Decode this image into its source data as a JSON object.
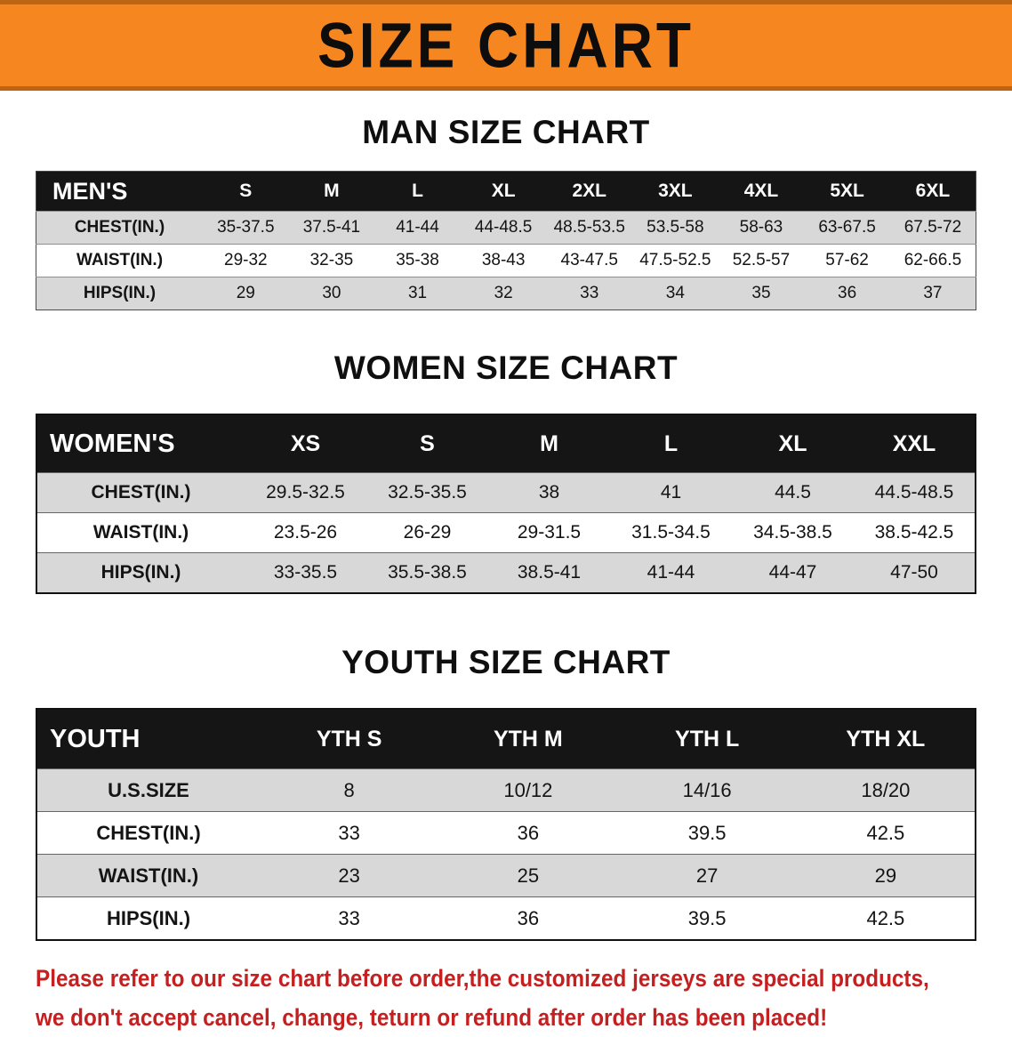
{
  "banner": {
    "title": "SIZE CHART"
  },
  "chart_data": [
    {
      "type": "table",
      "id": "mens",
      "section_heading": "MAN SIZE CHART",
      "corner_label": "MEN'S",
      "columns": [
        "S",
        "M",
        "L",
        "XL",
        "2XL",
        "3XL",
        "4XL",
        "5XL",
        "6XL"
      ],
      "rows": [
        {
          "label": "CHEST(IN.)",
          "values": [
            "35-37.5",
            "37.5-41",
            "41-44",
            "44-48.5",
            "48.5-53.5",
            "53.5-58",
            "58-63",
            "63-67.5",
            "67.5-72"
          ]
        },
        {
          "label": "WAIST(IN.)",
          "values": [
            "29-32",
            "32-35",
            "35-38",
            "38-43",
            "43-47.5",
            "47.5-52.5",
            "52.5-57",
            "57-62",
            "62-66.5"
          ]
        },
        {
          "label": "HIPS(IN.)",
          "values": [
            "29",
            "30",
            "31",
            "32",
            "33",
            "34",
            "35",
            "36",
            "37"
          ]
        }
      ]
    },
    {
      "type": "table",
      "id": "womens",
      "section_heading": "WOMEN SIZE CHART",
      "corner_label": "WOMEN'S",
      "columns": [
        "XS",
        "S",
        "M",
        "L",
        "XL",
        "XXL"
      ],
      "rows": [
        {
          "label": "CHEST(IN.)",
          "values": [
            "29.5-32.5",
            "32.5-35.5",
            "38",
            "41",
            "44.5",
            "44.5-48.5"
          ]
        },
        {
          "label": "WAIST(IN.)",
          "values": [
            "23.5-26",
            "26-29",
            "29-31.5",
            "31.5-34.5",
            "34.5-38.5",
            "38.5-42.5"
          ]
        },
        {
          "label": "HIPS(IN.)",
          "values": [
            "33-35.5",
            "35.5-38.5",
            "38.5-41",
            "41-44",
            "44-47",
            "47-50"
          ]
        }
      ]
    },
    {
      "type": "table",
      "id": "youth",
      "section_heading": "YOUTH SIZE CHART",
      "corner_label": "YOUTH",
      "columns": [
        "YTH S",
        "YTH M",
        "YTH L",
        "YTH XL"
      ],
      "rows": [
        {
          "label": "U.S.SIZE",
          "values": [
            "8",
            "10/12",
            "14/16",
            "18/20"
          ]
        },
        {
          "label": "CHEST(IN.)",
          "values": [
            "33",
            "36",
            "39.5",
            "42.5"
          ]
        },
        {
          "label": "WAIST(IN.)",
          "values": [
            "23",
            "25",
            "27",
            "29"
          ]
        },
        {
          "label": "HIPS(IN.)",
          "values": [
            "33",
            "36",
            "39.5",
            "42.5"
          ]
        }
      ]
    }
  ],
  "footer": {
    "lines": [
      "Please refer to our size chart before order,the customized jerseys are special products,",
      "we don't accept cancel, change, teturn or refund after order has been placed!"
    ]
  },
  "colors": {
    "banner-orange": "#f6861f",
    "banner-edge": "#bf6412",
    "table-header-black": "#151515",
    "row-gray": "#d8d8d8",
    "notice-red": "#c51f1f"
  }
}
